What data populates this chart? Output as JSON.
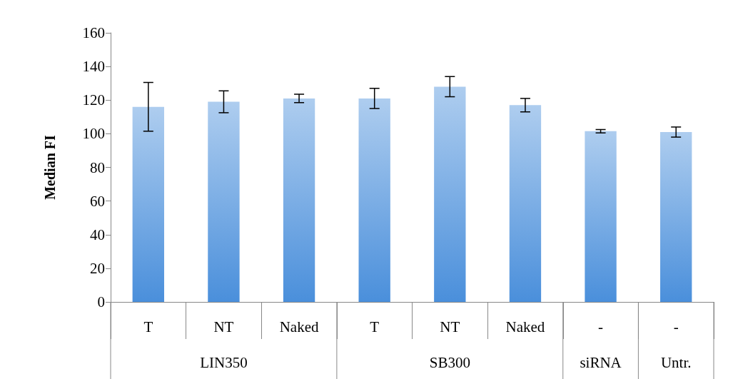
{
  "chart_data": {
    "type": "bar",
    "ylabel": "Median FI",
    "categories": [
      "T",
      "NT",
      "Naked",
      "T",
      "NT",
      "Naked",
      "-",
      "-"
    ],
    "series": [
      {
        "color": "#4a8fdb",
        "values": [
          116,
          119,
          121,
          121,
          128,
          117,
          101.5,
          101
        ],
        "errors": [
          14.5,
          6.5,
          2.5,
          6,
          6,
          4,
          1,
          3
        ]
      }
    ],
    "ylim": [
      0,
      160
    ],
    "yticks": [
      0,
      20,
      40,
      60,
      80,
      100,
      120,
      140,
      160
    ],
    "grid": false,
    "annotations": [
      "LIN350",
      "SB300",
      "siRNA",
      "Untr."
    ]
  }
}
